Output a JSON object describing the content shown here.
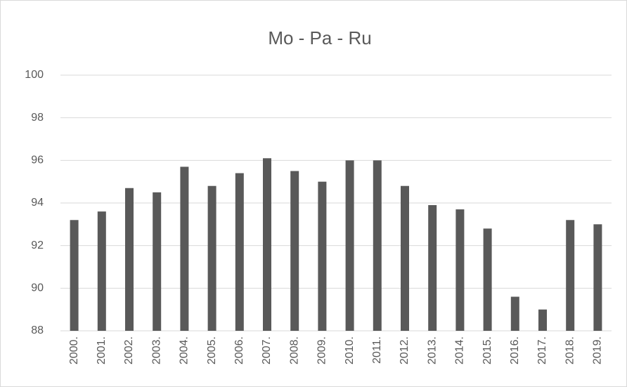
{
  "chart_data": {
    "type": "bar",
    "title": "Mo - Pa - Ru",
    "categories": [
      "2000.",
      "2001.",
      "2002.",
      "2003.",
      "2004.",
      "2005.",
      "2006.",
      "2007.",
      "2008.",
      "2009.",
      "2010.",
      "2011.",
      "2012.",
      "2013.",
      "2014.",
      "2015.",
      "2016.",
      "2017.",
      "2018.",
      "2019."
    ],
    "values": [
      93.2,
      93.6,
      94.7,
      94.5,
      95.7,
      94.8,
      95.4,
      96.1,
      95.5,
      95.0,
      96.0,
      96.0,
      94.8,
      93.9,
      93.7,
      92.8,
      89.6,
      89.0,
      93.2,
      93.0
    ],
    "color": "#595959",
    "ylim": [
      88,
      100
    ],
    "yticks": [
      88,
      90,
      92,
      94,
      96,
      98,
      100
    ],
    "grid": true
  }
}
